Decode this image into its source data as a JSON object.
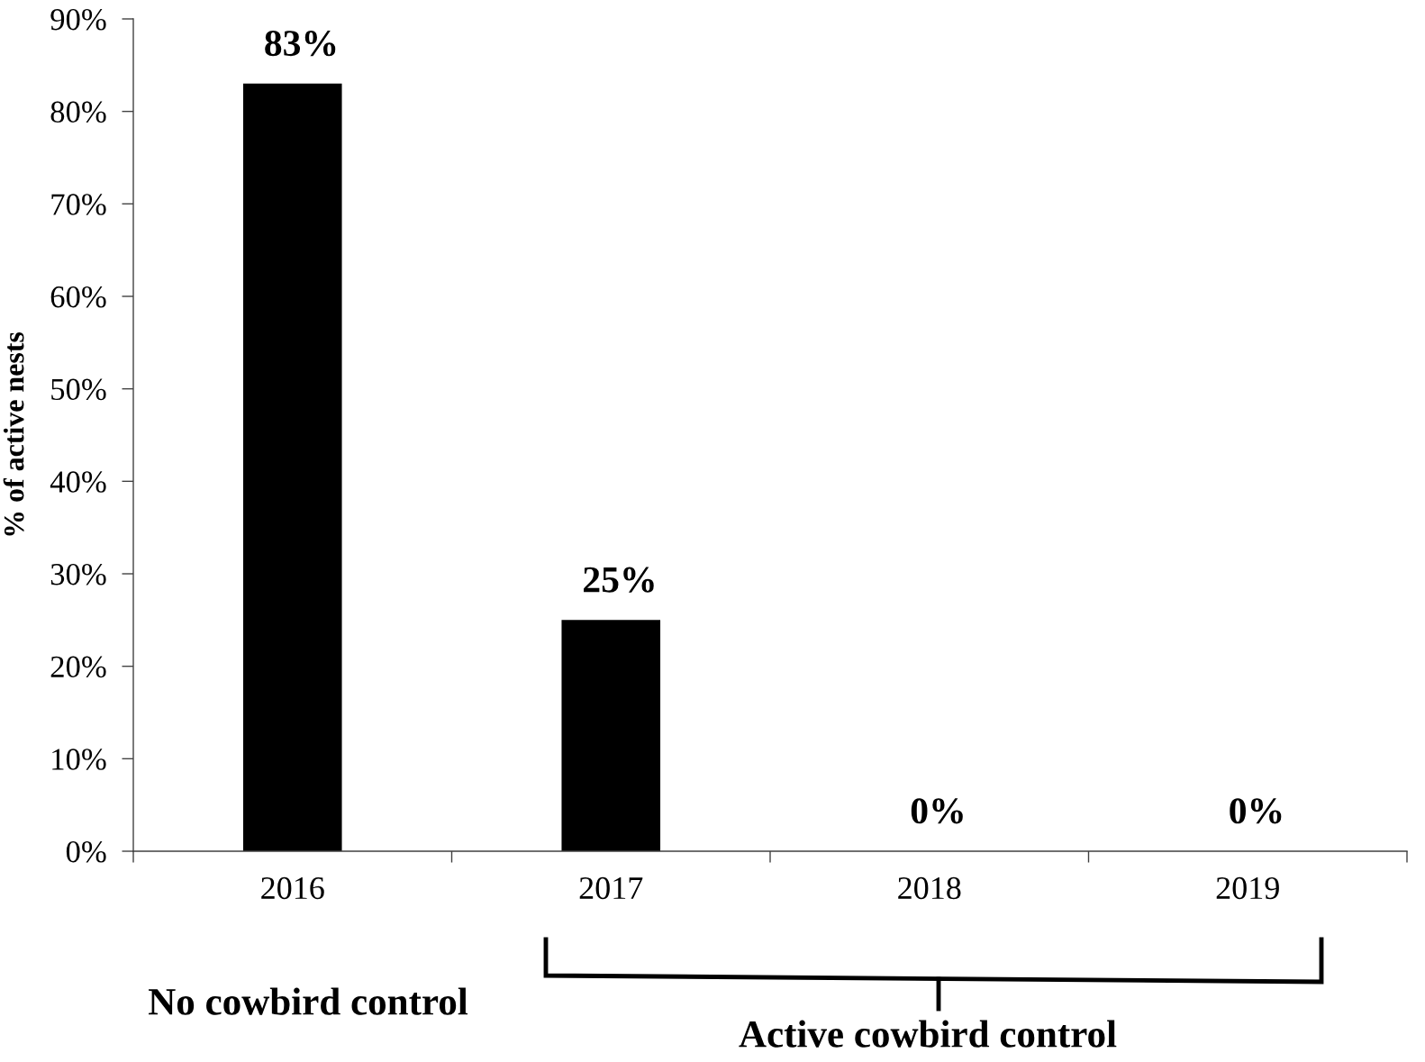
{
  "chart_data": {
    "type": "bar",
    "ylabel": "% of active nests",
    "categories": [
      "2016",
      "2017",
      "2018",
      "2019"
    ],
    "values": [
      83,
      25,
      0,
      0
    ],
    "color": "#000000",
    "value_labels": [
      "83%",
      "25%",
      "0%",
      "0%"
    ],
    "ylim": [
      0,
      90
    ],
    "yticks": [
      {
        "value": 0,
        "label": "0%"
      },
      {
        "value": 10,
        "label": "10%"
      },
      {
        "value": 20,
        "label": "20%"
      },
      {
        "value": 30,
        "label": "30%"
      },
      {
        "value": 40,
        "label": "40%"
      },
      {
        "value": 50,
        "label": "50%"
      },
      {
        "value": 60,
        "label": "60%"
      },
      {
        "value": 70,
        "label": "70%"
      },
      {
        "value": 80,
        "label": "80%"
      },
      {
        "value": 90,
        "label": "90%"
      }
    ],
    "annotations": [
      "No cowbird control",
      "Active cowbird control"
    ]
  }
}
